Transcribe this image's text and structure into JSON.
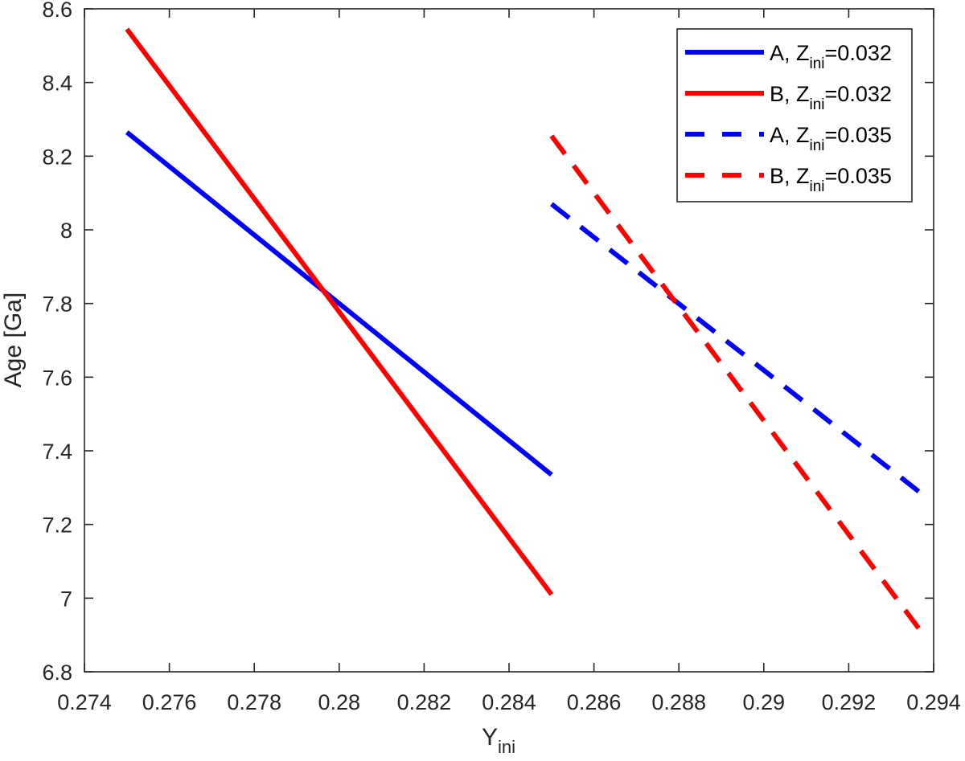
{
  "chart_data": {
    "type": "line",
    "title": "",
    "xlabel": "Y",
    "xlabel_subscript": "ini",
    "ylabel": "Age [Ga]",
    "xlim": [
      0.274,
      0.294
    ],
    "ylim": [
      6.8,
      8.6
    ],
    "grid": false,
    "legend_position": "upper right",
    "x_ticks": [
      0.274,
      0.276,
      0.278,
      0.28,
      0.282,
      0.284,
      0.286,
      0.288,
      0.29,
      0.292,
      0.294
    ],
    "x_tick_labels": [
      "0.274",
      "0.276",
      "0.278",
      "0.28",
      "0.282",
      "0.284",
      "0.286",
      "0.288",
      "0.29",
      "0.292",
      "0.294"
    ],
    "y_ticks": [
      6.8,
      7,
      7.2,
      7.4,
      7.6,
      7.8,
      8,
      8.2,
      8.4,
      8.6
    ],
    "y_tick_labels": [
      "6.8",
      "7",
      "7.2",
      "7.4",
      "7.6",
      "7.8",
      "8",
      "8.2",
      "8.4",
      "8.6"
    ],
    "series": [
      {
        "name": "A, Z_ini=0.032",
        "label_main": "A, Z",
        "label_sub": "ini",
        "label_tail": "=0.032",
        "color": "#0000ff",
        "style": "solid",
        "x": [
          0.275,
          0.285
        ],
        "y": [
          8.265,
          7.335
        ]
      },
      {
        "name": "B, Z_ini=0.032",
        "label_main": "B, Z",
        "label_sub": "ini",
        "label_tail": "=0.032",
        "color": "#ff0000",
        "style": "solid",
        "x": [
          0.275,
          0.285
        ],
        "y": [
          8.545,
          7.01
        ]
      },
      {
        "name": "A, Z_ini=0.035",
        "label_main": "A, Z",
        "label_sub": "ini",
        "label_tail": "=0.035",
        "color": "#0000ff",
        "style": "dashed",
        "x": [
          0.285,
          0.2937
        ],
        "y": [
          8.07,
          7.285
        ]
      },
      {
        "name": "B, Z_ini=0.035",
        "label_main": "B, Z",
        "label_sub": "ini",
        "label_tail": "=0.035",
        "color": "#ff0000",
        "style": "dashed",
        "x": [
          0.285,
          0.2937
        ],
        "y": [
          8.255,
          6.91
        ]
      }
    ]
  }
}
